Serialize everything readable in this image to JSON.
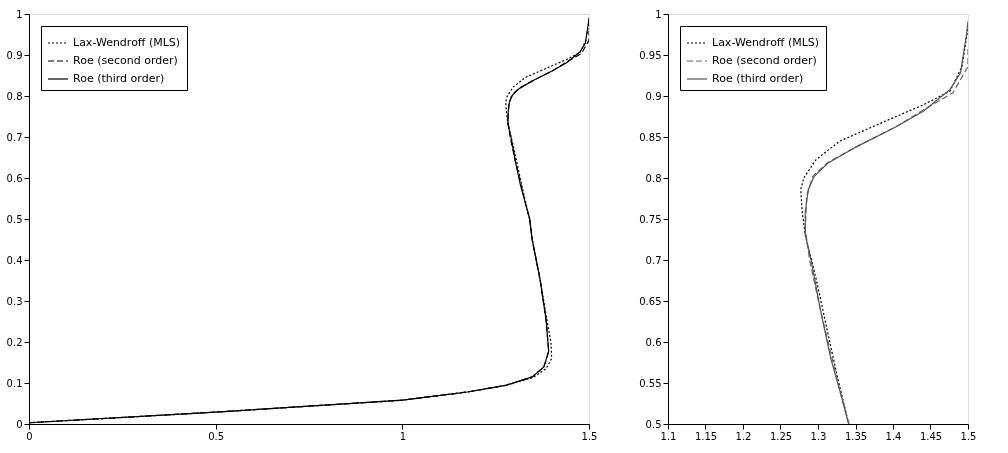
{
  "chart_data": [
    {
      "type": "line",
      "legend": "top left",
      "grid": false,
      "xlim": [
        0,
        1.5
      ],
      "ylim": [
        0,
        1
      ],
      "xticks": [
        0,
        0.5,
        1,
        1.5
      ],
      "yticks": [
        0,
        0.1,
        0.2,
        0.3,
        0.4,
        0.5,
        0.6,
        0.7,
        0.8,
        0.9,
        1
      ],
      "series": [
        {
          "name": "Lax-Wendroff (MLS)",
          "color": "#000000",
          "line_style": "dotted",
          "x": [
            0,
            0.5,
            1.0,
            1.174,
            1.276,
            1.35,
            1.385,
            1.4,
            1.398,
            1.387,
            1.369,
            1.348,
            1.341,
            1.325,
            1.297,
            1.283,
            1.279,
            1.277,
            1.281,
            1.297,
            1.329,
            1.389,
            1.44,
            1.476,
            1.492,
            1.5
          ],
          "values": [
            0.003,
            0.029,
            0.058,
            0.078,
            0.094,
            0.113,
            0.135,
            0.16,
            0.2,
            0.255,
            0.352,
            0.449,
            0.5,
            0.561,
            0.679,
            0.731,
            0.758,
            0.786,
            0.8,
            0.822,
            0.845,
            0.869,
            0.889,
            0.906,
            0.936,
            0.983
          ]
        },
        {
          "name": "Roe (second order)",
          "color": "#000000",
          "line_style": "dashed",
          "x": [
            0,
            0.5,
            1.0,
            1.174,
            1.276,
            1.348,
            1.379,
            1.392,
            1.385,
            1.369,
            1.348,
            1.341,
            1.329,
            1.303,
            1.289,
            1.283,
            1.285,
            1.293,
            1.313,
            1.353,
            1.405,
            1.444,
            1.48,
            1.5,
            1.5
          ],
          "values": [
            0.003,
            0.029,
            0.058,
            0.078,
            0.094,
            0.115,
            0.139,
            0.177,
            0.255,
            0.352,
            0.449,
            0.5,
            0.541,
            0.64,
            0.699,
            0.738,
            0.778,
            0.802,
            0.819,
            0.839,
            0.863,
            0.885,
            0.904,
            0.936,
            0.96
          ]
        },
        {
          "name": "Roe (third order)",
          "color": "#000000",
          "line_style": "solid",
          "x": [
            0,
            0.5,
            1.0,
            1.174,
            1.276,
            1.348,
            1.379,
            1.392,
            1.385,
            1.369,
            1.348,
            1.341,
            1.329,
            1.317,
            1.303,
            1.291,
            1.283,
            1.283,
            1.287,
            1.295,
            1.313,
            1.349,
            1.401,
            1.44,
            1.476,
            1.49,
            1.498,
            1.5
          ],
          "values": [
            0.003,
            0.029,
            0.058,
            0.078,
            0.094,
            0.115,
            0.139,
            0.177,
            0.255,
            0.352,
            0.449,
            0.5,
            0.541,
            0.58,
            0.64,
            0.699,
            0.731,
            0.758,
            0.786,
            0.802,
            0.818,
            0.837,
            0.861,
            0.881,
            0.908,
            0.928,
            0.975,
            0.991
          ]
        }
      ]
    },
    {
      "type": "line",
      "legend": "top left",
      "grid": false,
      "xlim": [
        1.1,
        1.5
      ],
      "ylim": [
        0.5,
        1
      ],
      "xticks": [
        1.1,
        1.15,
        1.2,
        1.25,
        1.3,
        1.35,
        1.4,
        1.45,
        1.5
      ],
      "yticks": [
        0.5,
        0.55,
        0.6,
        0.65,
        0.7,
        0.75,
        0.8,
        0.85,
        0.9,
        0.95,
        1
      ],
      "series": [
        {
          "name": "Lax-Wendroff (MLS)",
          "color": "#000000",
          "line_style": "dotted",
          "x": [
            1.341,
            1.325,
            1.297,
            1.283,
            1.279,
            1.277,
            1.281,
            1.297,
            1.329,
            1.389,
            1.44,
            1.476,
            1.492,
            1.5
          ],
          "values": [
            0.5,
            0.561,
            0.679,
            0.731,
            0.758,
            0.786,
            0.8,
            0.822,
            0.845,
            0.869,
            0.889,
            0.906,
            0.936,
            0.983
          ]
        },
        {
          "name": "Roe (second order)",
          "color": "#666666",
          "line_style": "dashed",
          "x": [
            1.341,
            1.329,
            1.303,
            1.289,
            1.283,
            1.285,
            1.293,
            1.313,
            1.353,
            1.405,
            1.444,
            1.48,
            1.5,
            1.5
          ],
          "values": [
            0.5,
            0.541,
            0.64,
            0.699,
            0.738,
            0.778,
            0.802,
            0.819,
            0.839,
            0.863,
            0.885,
            0.904,
            0.936,
            0.96
          ]
        },
        {
          "name": "Roe (third order)",
          "color": "#555555",
          "line_style": "solid",
          "x": [
            1.341,
            1.329,
            1.317,
            1.303,
            1.291,
            1.283,
            1.283,
            1.287,
            1.295,
            1.313,
            1.349,
            1.401,
            1.44,
            1.476,
            1.49,
            1.498,
            1.5
          ],
          "values": [
            0.5,
            0.541,
            0.58,
            0.64,
            0.699,
            0.731,
            0.758,
            0.786,
            0.802,
            0.818,
            0.837,
            0.861,
            0.881,
            0.908,
            0.928,
            0.975,
            0.991
          ]
        }
      ]
    }
  ]
}
